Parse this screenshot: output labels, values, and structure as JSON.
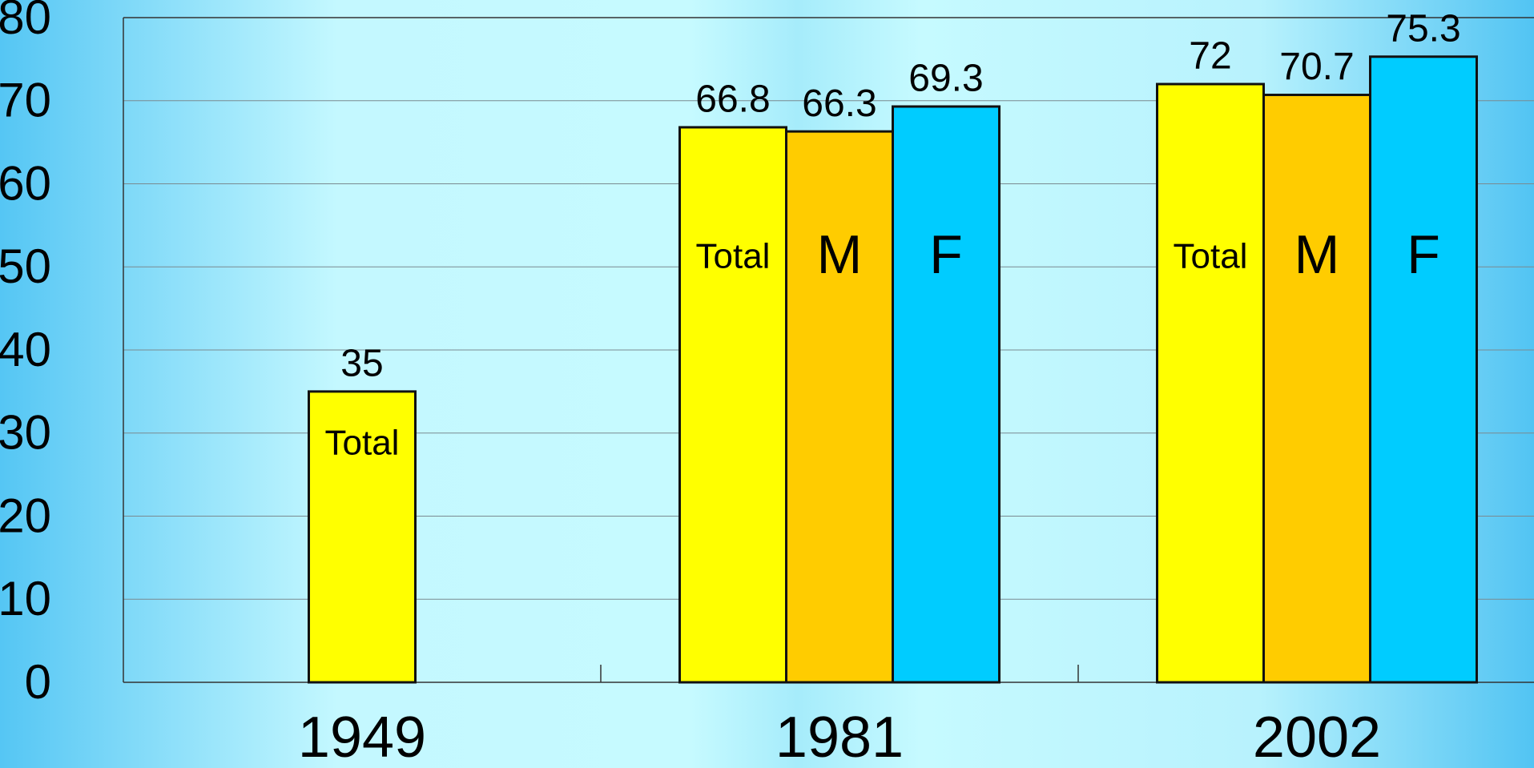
{
  "chart_data": {
    "type": "bar",
    "categories": [
      "1949",
      "1981",
      "2002"
    ],
    "series": [
      {
        "name": "Total",
        "color": "#ffff00",
        "values": [
          35,
          66.8,
          72
        ]
      },
      {
        "name": "M",
        "color": "#ffcc00",
        "values": [
          null,
          66.3,
          70.7
        ]
      },
      {
        "name": "F",
        "color": "#00ccff",
        "values": [
          null,
          69.3,
          75.3
        ]
      }
    ],
    "ylim": [
      0,
      80
    ],
    "yticks": [
      0,
      10,
      20,
      30,
      40,
      50,
      60,
      70,
      80
    ],
    "grid": true
  }
}
